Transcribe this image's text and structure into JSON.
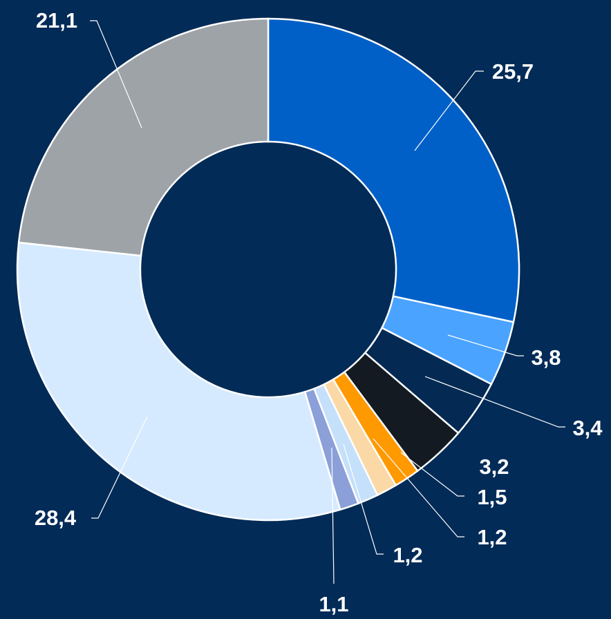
{
  "chart_data": {
    "type": "donut",
    "values": [
      25.7,
      3.8,
      3.4,
      3.2,
      1.5,
      1.2,
      1.2,
      1.1,
      28.4,
      21.1
    ],
    "value_labels": [
      "25,7",
      "3,8",
      "3,4",
      "3,2",
      "1,5",
      "1,2",
      "1,2",
      "1,1",
      "28,4",
      "21,1"
    ],
    "colors": [
      "#0060c8",
      "#4aa3ff",
      "#042a54",
      "#141a22",
      "#ff9900",
      "#fad9a6",
      "#c5e0fa",
      "#8b9fd8",
      "#d6eaff",
      "#9ea3a8"
    ]
  }
}
